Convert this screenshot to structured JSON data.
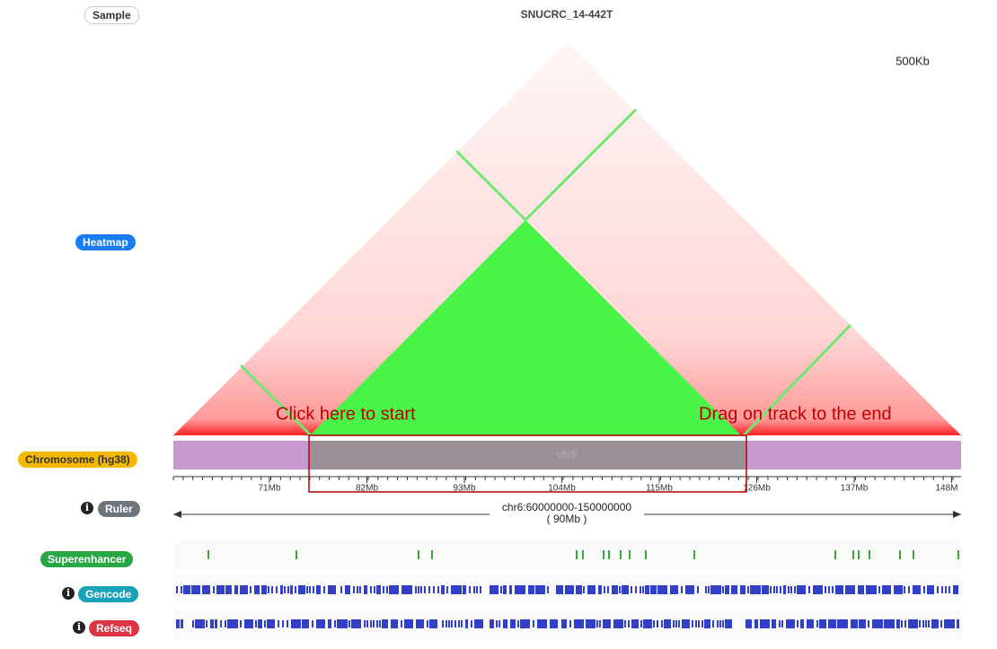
{
  "sidebar": {
    "sample": "Sample",
    "heatmap": "Heatmap",
    "chromosome": "Chromosome (hg38)",
    "ruler": "Ruler",
    "superenhancer": "Superenhancer",
    "gencode": "Gencode",
    "refseq": "Refseq"
  },
  "header": {
    "sample_name": "SNUCRC_14-442T",
    "resolution": "500Kb"
  },
  "chromosome": {
    "name": "chr6"
  },
  "ruler": {
    "ticks": [
      "71Mb",
      "82Mb",
      "93Mb",
      "104Mb",
      "115Mb",
      "126Mb",
      "137Mb",
      "148M"
    ],
    "region": "chr6:60000000-150000000",
    "span": "( 90Mb )"
  },
  "annotations": {
    "start": "Click here to start",
    "end": "Drag on track to the end"
  }
}
